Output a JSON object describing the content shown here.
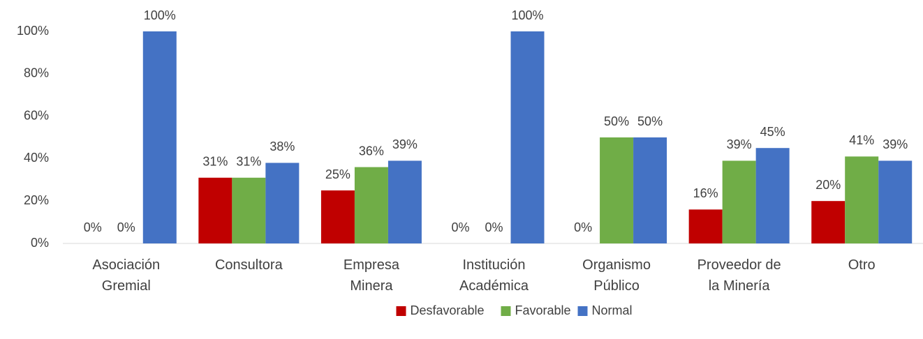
{
  "chart_data": {
    "type": "bar",
    "categories": [
      "Asociación Gremial",
      "Consultora",
      "Empresa Minera",
      "Institución Académica",
      "Organismo Público",
      "Proveedor de la Minería",
      "Otro"
    ],
    "series": [
      {
        "name": "Desfavorable",
        "color": "#c00000",
        "values": [
          0,
          31,
          25,
          0,
          0,
          16,
          20
        ],
        "value_labels": [
          "0%",
          "31%",
          "25%",
          "0%",
          "0%",
          "16%",
          "20%"
        ]
      },
      {
        "name": "Favorable",
        "color": "#70ad47",
        "values": [
          0,
          31,
          36,
          0,
          50,
          39,
          41
        ],
        "value_labels": [
          "0%",
          "31%",
          "36%",
          "0%",
          "50%",
          "39%",
          "41%"
        ]
      },
      {
        "name": "Normal",
        "color": "#4472c4",
        "values": [
          100,
          38,
          39,
          100,
          50,
          45,
          39
        ],
        "value_labels": [
          "100%",
          "38%",
          "39%",
          "100%",
          "50%",
          "45%",
          "39%"
        ]
      }
    ],
    "ylim": [
      0,
      100
    ],
    "yticks": [
      {
        "value": 0,
        "label": "0%"
      },
      {
        "value": 20,
        "label": "20%"
      },
      {
        "value": 40,
        "label": "40%"
      },
      {
        "value": 60,
        "label": "60%"
      },
      {
        "value": 80,
        "label": "80%"
      },
      {
        "value": 100,
        "label": "100%"
      }
    ],
    "grid": false,
    "legend": "bottom"
  }
}
